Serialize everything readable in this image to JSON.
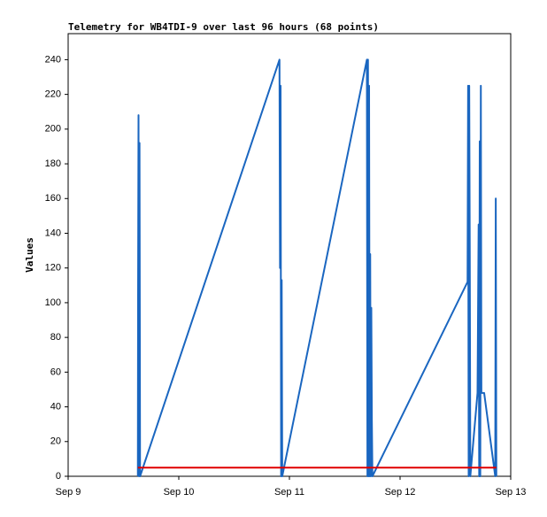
{
  "chart_data": {
    "type": "line",
    "title": "Telemetry for WB4TDI-9 over last 96 hours (68 points)",
    "y_label": "Values",
    "xlim": [
      9,
      13
    ],
    "xticks": [
      {
        "value": 9,
        "label": "Sep 9"
      },
      {
        "value": 10,
        "label": "Sep 10"
      },
      {
        "value": 11,
        "label": "Sep 11"
      },
      {
        "value": 12,
        "label": "Sep 12"
      },
      {
        "value": 13,
        "label": "Sep 13"
      }
    ],
    "ylim": [
      0,
      255
    ],
    "yticks": [
      0,
      20,
      40,
      60,
      80,
      100,
      120,
      140,
      160,
      180,
      200,
      220,
      240
    ],
    "series": [
      {
        "color": "#1a66c0",
        "x": [
          9.63,
          9.632,
          9.636,
          9.64,
          9.645,
          9.65,
          10.91,
          10.915,
          10.92,
          10.925,
          10.93,
          10.935,
          11.7,
          11.705,
          11.71,
          11.715,
          11.72,
          11.725,
          11.73,
          11.735,
          11.74,
          11.745,
          11.75,
          12.61,
          12.615,
          12.62,
          12.625,
          12.63,
          12.635,
          12.7,
          12.71,
          12.715,
          12.72,
          12.725,
          12.73,
          12.735,
          12.76,
          12.86,
          12.865,
          12.87
        ],
        "values": [
          0,
          104,
          208,
          0,
          192,
          0,
          240,
          120,
          225,
          0,
          113,
          0,
          240,
          0,
          240,
          0,
          225,
          0,
          128,
          0,
          97,
          32,
          0,
          112,
          225,
          0,
          225,
          128,
          0,
          48,
          145,
          0,
          193,
          0,
          225,
          48,
          48,
          0,
          160,
          0
        ]
      },
      {
        "color": "#e00000",
        "x": [
          9.63,
          12.87
        ],
        "values": [
          5,
          5
        ]
      }
    ]
  }
}
